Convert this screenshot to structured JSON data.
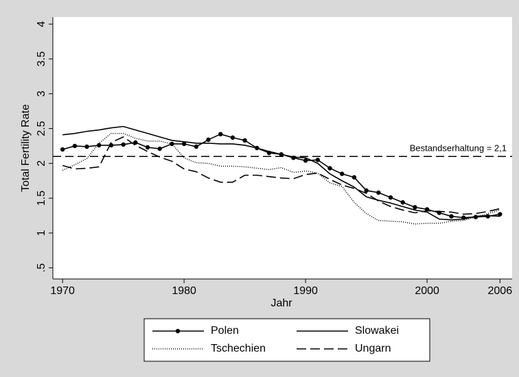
{
  "chart_data": {
    "type": "line",
    "xlabel": "Jahr",
    "ylabel": "Total Fertility Rate",
    "x": [
      1970,
      1971,
      1972,
      1973,
      1974,
      1975,
      1976,
      1977,
      1978,
      1979,
      1980,
      1981,
      1982,
      1983,
      1984,
      1985,
      1986,
      1987,
      1988,
      1989,
      1990,
      1991,
      1992,
      1993,
      1994,
      1995,
      1996,
      1997,
      1998,
      1999,
      2000,
      2001,
      2002,
      2003,
      2004,
      2005,
      2006
    ],
    "xlim": [
      1969.2,
      2007
    ],
    "xticks": [
      1970,
      1980,
      1990,
      2000,
      2006
    ],
    "ylim": [
      0.34,
      4.1
    ],
    "yticks": [
      {
        "value": 0.5,
        "label": ".5"
      },
      1,
      1.5,
      2,
      2.5,
      3,
      3.5,
      4
    ],
    "reference_line": {
      "value": 2.1,
      "label": "Bestandserhaltung = 2,1",
      "dash": "12 6"
    },
    "series": [
      {
        "name": "Polen",
        "color": "#000000",
        "dash": "none",
        "marker": "circle",
        "values": [
          2.2,
          2.25,
          2.24,
          2.26,
          2.26,
          2.27,
          2.3,
          2.23,
          2.21,
          2.28,
          2.28,
          2.24,
          2.34,
          2.42,
          2.37,
          2.33,
          2.22,
          2.15,
          2.13,
          2.08,
          2.04,
          2.05,
          1.93,
          1.85,
          1.8,
          1.61,
          1.58,
          1.51,
          1.44,
          1.37,
          1.34,
          1.29,
          1.24,
          1.22,
          1.23,
          1.24,
          1.27
        ]
      },
      {
        "name": "Slowakei",
        "color": "#000000",
        "dash": "none",
        "marker": "none",
        "values": [
          2.41,
          2.43,
          2.46,
          2.48,
          2.51,
          2.53,
          2.48,
          2.43,
          2.38,
          2.33,
          2.31,
          2.29,
          2.29,
          2.28,
          2.28,
          2.26,
          2.22,
          2.17,
          2.13,
          2.09,
          2.08,
          2.0,
          1.85,
          1.75,
          1.66,
          1.52,
          1.47,
          1.43,
          1.38,
          1.33,
          1.3,
          1.2,
          1.19,
          1.2,
          1.24,
          1.25,
          1.24
        ]
      },
      {
        "name": "Tschechien",
        "color": "#000000",
        "dash": "1 2",
        "marker": "none",
        "values": [
          1.9,
          1.98,
          2.07,
          2.29,
          2.43,
          2.43,
          2.36,
          2.32,
          2.32,
          2.28,
          2.08,
          2.01,
          2.0,
          1.96,
          1.96,
          1.95,
          1.93,
          1.91,
          1.94,
          1.87,
          1.89,
          1.86,
          1.72,
          1.67,
          1.44,
          1.28,
          1.18,
          1.17,
          1.16,
          1.13,
          1.14,
          1.14,
          1.17,
          1.18,
          1.23,
          1.28,
          1.33
        ]
      },
      {
        "name": "Ungarn",
        "color": "#000000",
        "dash": "14 6",
        "marker": "none",
        "values": [
          1.97,
          1.92,
          1.93,
          1.95,
          2.3,
          2.38,
          2.26,
          2.17,
          2.09,
          2.03,
          1.92,
          1.88,
          1.79,
          1.73,
          1.73,
          1.83,
          1.83,
          1.81,
          1.79,
          1.78,
          1.84,
          1.86,
          1.77,
          1.69,
          1.64,
          1.57,
          1.46,
          1.38,
          1.33,
          1.29,
          1.32,
          1.31,
          1.3,
          1.27,
          1.28,
          1.31,
          1.35
        ]
      }
    ]
  }
}
